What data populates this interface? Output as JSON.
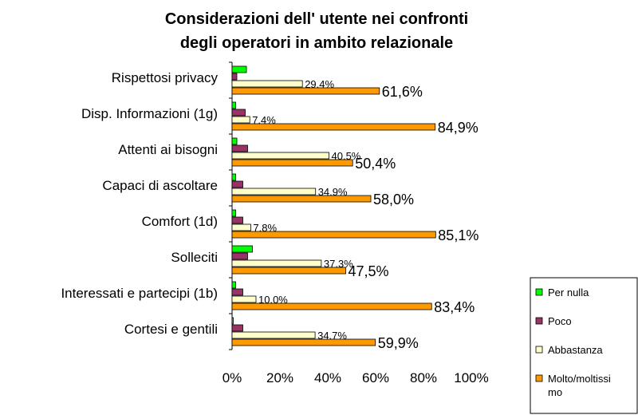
{
  "chart_data": {
    "type": "bar",
    "orientation": "horizontal",
    "title_lines": [
      "Considerazioni dell' utente nei confronti",
      "degli operatori in ambito relazionale"
    ],
    "categories": [
      "Rispettosi privacy",
      "Disp. Informazioni (1g)",
      "Attenti ai bisogni",
      "Capaci di ascoltare",
      "Comfort (1d)",
      "Solleciti",
      "Interessati e partecipi (1b)",
      "Cortesi e gentili"
    ],
    "series": [
      {
        "name": "Per nulla",
        "color": "#00ff00",
        "values": [
          6.0,
          1.5,
          2.0,
          1.5,
          1.5,
          8.5,
          1.5,
          0.5
        ]
      },
      {
        "name": "Poco",
        "color": "#993366",
        "values": [
          2.0,
          5.5,
          6.5,
          4.5,
          4.5,
          6.5,
          4.5,
          4.5
        ]
      },
      {
        "name": "Abbastanza",
        "color": "#ffffcc",
        "values": [
          29.4,
          7.4,
          40.5,
          34.9,
          7.8,
          37.3,
          10.0,
          34.7
        ],
        "labels": [
          "29,4%",
          "7,4%",
          "40,5%",
          "34,9%",
          "7,8%",
          "37,3%",
          "10,0%",
          "34,7%"
        ]
      },
      {
        "name": "Molto/moltissimo",
        "color": "#ff9900",
        "values": [
          61.6,
          84.9,
          50.4,
          58.0,
          85.1,
          47.5,
          83.4,
          59.9
        ],
        "labels": [
          "61,6%",
          "84,9%",
          "50,4%",
          "58,0%",
          "85,1%",
          "47,5%",
          "83,4%",
          "59,9%"
        ]
      }
    ],
    "xlim": [
      0,
      100
    ],
    "xticks": [
      "0%",
      "20%",
      "40%",
      "60%",
      "80%",
      "100%"
    ],
    "legend": {
      "placement": "bottom-right",
      "lines": [
        [
          "Per nulla"
        ],
        [
          "Poco"
        ],
        [
          "Abbastanza"
        ],
        [
          "Molto/moltissi",
          "mo"
        ]
      ]
    },
    "grid": false
  }
}
